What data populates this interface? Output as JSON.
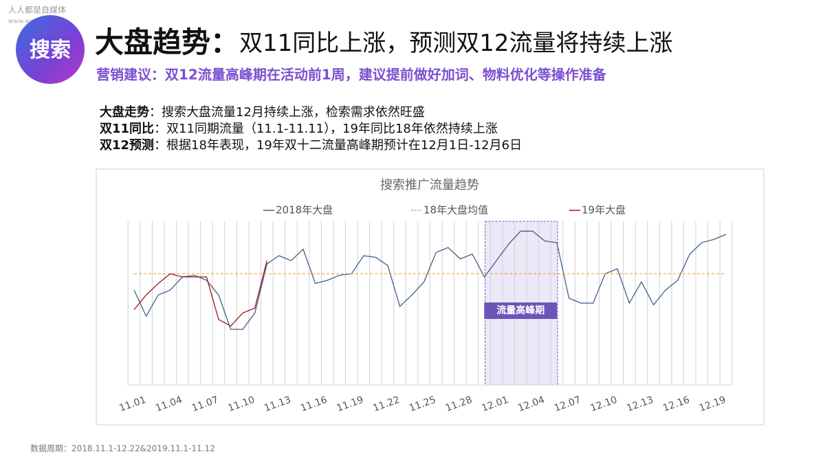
{
  "watermark": {
    "brand": "人人都是自媒体",
    "url": "www.woshipm.com"
  },
  "header": {
    "icon": "搜索",
    "title_lead": "大盘趋势：",
    "title_rest": "双11同比上涨，预测双12流量将持续上涨",
    "subtitle": "营销建议：双12流量高峰期在活动前1周，建议提前做好加词、物料优化等操作准备"
  },
  "notes": [
    {
      "lead": "大盘走势",
      "text": "：搜索大盘流量12月持续上涨，检索需求依然旺盛"
    },
    {
      "lead": "双11同比",
      "text": "：双11同期流量（11.1-11.11），19年同比18年依然持续上涨"
    },
    {
      "lead": "双12预测",
      "text": "：根据18年表现，19年双十二流量高峰期预计在12月1日-12月6日"
    }
  ],
  "footer": "数据周期：2018.11.1-12.22&2019.11.1-11.12",
  "chart_data": {
    "type": "line",
    "title": "搜索推广流量趋势",
    "categories": [
      "11.01",
      null,
      null,
      "11.04",
      null,
      null,
      "11.07",
      null,
      null,
      "11.10",
      null,
      null,
      "11.13",
      null,
      null,
      "11.16",
      null,
      null,
      "11.19",
      null,
      null,
      "11.22",
      null,
      null,
      "11.25",
      null,
      null,
      "11.28",
      null,
      null,
      "12.01",
      null,
      null,
      "12.04",
      null,
      null,
      "12.07",
      null,
      null,
      "12.10",
      null,
      null,
      "12.13",
      null,
      null,
      "12.16",
      null,
      null,
      "12.19",
      null
    ],
    "series": [
      {
        "name": "2018年大盘",
        "color": "#3f5f8c",
        "values": [
          58,
          42,
          55,
          58,
          66,
          67,
          64,
          55,
          34,
          34,
          44,
          74,
          79,
          76,
          83,
          62,
          64,
          67,
          68,
          79,
          78,
          73,
          48,
          55,
          63,
          81,
          84,
          77,
          80,
          66,
          76,
          86,
          94,
          94,
          88,
          87,
          53,
          50,
          50,
          68,
          71,
          50,
          63,
          49,
          58,
          64,
          80,
          87,
          89,
          92
        ]
      },
      {
        "name": "18年大盘均值",
        "color": "#e8a33a",
        "dashed": true,
        "values": [
          68,
          68,
          68,
          68,
          68,
          68,
          68,
          68,
          68,
          68,
          68,
          68,
          68,
          68,
          68,
          68,
          68,
          68,
          68,
          68,
          68,
          68,
          68,
          68,
          68,
          68,
          68,
          68,
          68,
          68,
          68,
          68,
          68,
          68,
          68,
          68,
          68,
          68,
          68,
          68,
          68,
          68,
          68,
          68,
          68,
          68,
          68,
          68,
          68,
          68
        ]
      },
      {
        "name": "19年大盘",
        "color": "#a0142b",
        "values": [
          46,
          55,
          62,
          68,
          66,
          66,
          66,
          40,
          36,
          44,
          47,
          76,
          null,
          null,
          null,
          null,
          null,
          null,
          null,
          null,
          null,
          null,
          null,
          null,
          null,
          null,
          null,
          null,
          null,
          null,
          null,
          null,
          null,
          null,
          null,
          null,
          null,
          null,
          null,
          null,
          null,
          null,
          null,
          null,
          null,
          null,
          null,
          null,
          null,
          null
        ]
      }
    ],
    "highlight": "流量高峰期",
    "ylim": [
      0,
      100
    ],
    "grid": true,
    "legend": "top"
  }
}
